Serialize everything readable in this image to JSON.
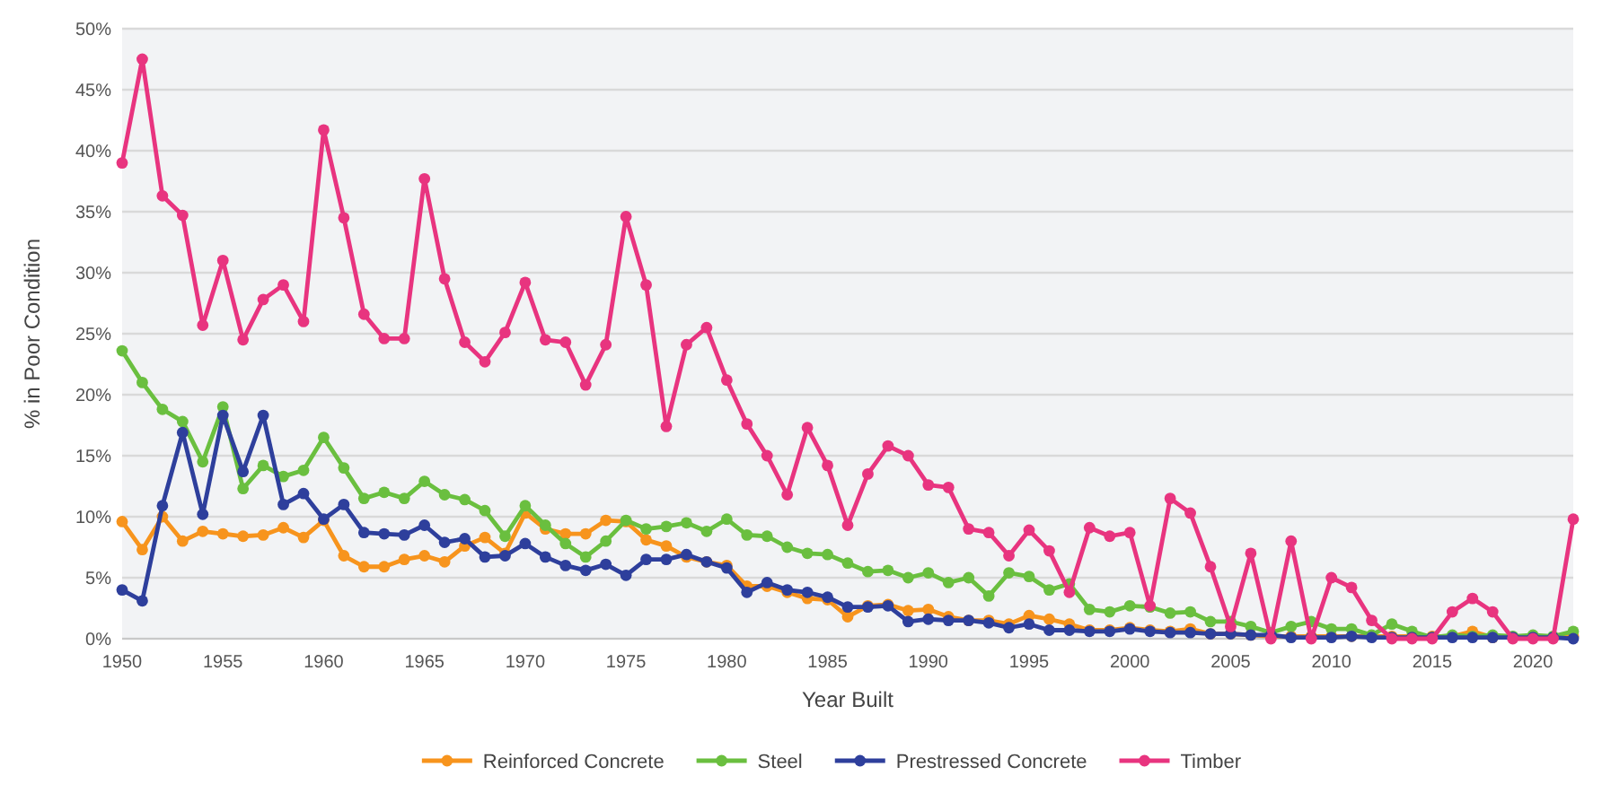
{
  "chart_data": {
    "type": "line",
    "xlabel": "Year Built",
    "ylabel": "% in Poor Condition",
    "x": [
      1950,
      1951,
      1952,
      1953,
      1954,
      1955,
      1956,
      1957,
      1958,
      1959,
      1960,
      1961,
      1962,
      1963,
      1964,
      1965,
      1966,
      1967,
      1968,
      1969,
      1970,
      1971,
      1972,
      1973,
      1974,
      1975,
      1976,
      1977,
      1978,
      1979,
      1980,
      1981,
      1982,
      1983,
      1984,
      1985,
      1986,
      1987,
      1988,
      1989,
      1990,
      1991,
      1992,
      1993,
      1994,
      1995,
      1996,
      1997,
      1998,
      1999,
      2000,
      2001,
      2002,
      2003,
      2004,
      2005,
      2006,
      2007,
      2008,
      2009,
      2010,
      2011,
      2012,
      2013,
      2014,
      2015,
      2016,
      2017,
      2018,
      2019,
      2020,
      2021,
      2022
    ],
    "series": [
      {
        "name": "Reinforced Concrete",
        "color": "#f7941d",
        "values": [
          9.6,
          7.3,
          10,
          8,
          8.8,
          8.6,
          8.4,
          8.5,
          9.1,
          8.3,
          9.7,
          6.8,
          5.9,
          5.9,
          6.5,
          6.8,
          6.3,
          7.6,
          8.3,
          7,
          10.3,
          9,
          8.6,
          8.6,
          9.7,
          9.6,
          8.1,
          7.6,
          6.7,
          6.3,
          6,
          4.3,
          4.3,
          3.8,
          3.3,
          3.2,
          1.8,
          2.7,
          2.8,
          2.3,
          2.4,
          1.8,
          1.5,
          1.5,
          1.2,
          1.9,
          1.6,
          1.2,
          0.7,
          0.7,
          0.9,
          0.7,
          0.6,
          0.8,
          0.4,
          0.4,
          0.3,
          0.2,
          0.2,
          0.2,
          0.2,
          0.2,
          0.2,
          0.2,
          0.2,
          0.2,
          0.2,
          0.6,
          0.1,
          0.1,
          0.1,
          0.1,
          0.2
        ]
      },
      {
        "name": "Steel",
        "color": "#6abf3f",
        "values": [
          23.6,
          21,
          18.8,
          17.8,
          14.5,
          19,
          12.3,
          14.2,
          13.3,
          13.8,
          16.5,
          14,
          11.5,
          12,
          11.5,
          12.9,
          11.8,
          11.4,
          10.5,
          8.4,
          10.9,
          9.3,
          7.8,
          6.7,
          8,
          9.7,
          9,
          9.2,
          9.5,
          8.8,
          9.8,
          8.5,
          8.4,
          7.5,
          7,
          6.9,
          6.2,
          5.5,
          5.6,
          5,
          5.4,
          4.6,
          5,
          3.5,
          5.4,
          5.1,
          4,
          4.5,
          2.4,
          2.2,
          2.7,
          2.6,
          2.1,
          2.2,
          1.4,
          1.4,
          1,
          0.5,
          1,
          1.4,
          0.8,
          0.8,
          0.3,
          1.2,
          0.6,
          0.1,
          0.3,
          0.2,
          0.3,
          0.2,
          0.3,
          0.2,
          0.6
        ]
      },
      {
        "name": "Prestressed Concrete",
        "color": "#2e3f9c",
        "values": [
          4,
          3.1,
          10.9,
          16.9,
          10.2,
          18.3,
          13.7,
          18.3,
          11,
          11.9,
          9.8,
          11,
          8.7,
          8.6,
          8.5,
          9.3,
          7.9,
          8.2,
          6.7,
          6.8,
          7.8,
          6.7,
          6,
          5.6,
          6.1,
          5.2,
          6.5,
          6.5,
          6.9,
          6.3,
          5.8,
          3.8,
          4.6,
          4,
          3.8,
          3.4,
          2.6,
          2.6,
          2.7,
          1.4,
          1.6,
          1.5,
          1.5,
          1.3,
          0.9,
          1.2,
          0.7,
          0.7,
          0.6,
          0.6,
          0.8,
          0.6,
          0.5,
          0.5,
          0.4,
          0.4,
          0.3,
          0.3,
          0.1,
          0.1,
          0.1,
          0.2,
          0.1,
          0.1,
          0.1,
          0.1,
          0.1,
          0.1,
          0.1,
          0.1,
          0.1,
          0.1,
          0
        ]
      },
      {
        "name": "Timber",
        "color": "#e8347f",
        "values": [
          39,
          47.5,
          36.3,
          34.7,
          25.7,
          31,
          24.5,
          27.8,
          29,
          26,
          41.7,
          34.5,
          26.6,
          24.6,
          24.6,
          37.7,
          29.5,
          24.3,
          22.7,
          25.1,
          29.2,
          24.5,
          24.3,
          20.8,
          24.1,
          34.6,
          29,
          17.4,
          24.1,
          25.5,
          21.2,
          17.6,
          15,
          11.8,
          17.3,
          14.2,
          9.3,
          13.5,
          15.8,
          15,
          12.6,
          12.4,
          9,
          8.7,
          6.8,
          8.9,
          7.2,
          3.8,
          9.1,
          8.4,
          8.7,
          2.7,
          11.5,
          10.3,
          5.9,
          1,
          7,
          0,
          8,
          0,
          5,
          4.2,
          1.5,
          0,
          0,
          0,
          2.2,
          3.3,
          2.2,
          0,
          0,
          0,
          9.8
        ]
      }
    ],
    "xlim": [
      1950,
      2022
    ],
    "xticks": [
      1950,
      1955,
      1960,
      1965,
      1970,
      1975,
      1980,
      1985,
      1990,
      1995,
      2000,
      2005,
      2010,
      2015,
      2020
    ],
    "ylim": [
      0,
      50
    ],
    "yticks": [
      {
        "value": 0,
        "label": "0%"
      },
      {
        "value": 5,
        "label": "5%"
      },
      {
        "value": 10,
        "label": "10%"
      },
      {
        "value": 15,
        "label": "15%"
      },
      {
        "value": 20,
        "label": "20%"
      },
      {
        "value": 25,
        "label": "25%"
      },
      {
        "value": 30,
        "label": "30%"
      },
      {
        "value": 35,
        "label": "35%"
      },
      {
        "value": 40,
        "label": "40%"
      },
      {
        "value": 45,
        "label": "45%"
      },
      {
        "value": 50,
        "label": "50%"
      }
    ],
    "grid": "y",
    "legend": "bottom",
    "marker": "circle",
    "line_style": "solid"
  }
}
